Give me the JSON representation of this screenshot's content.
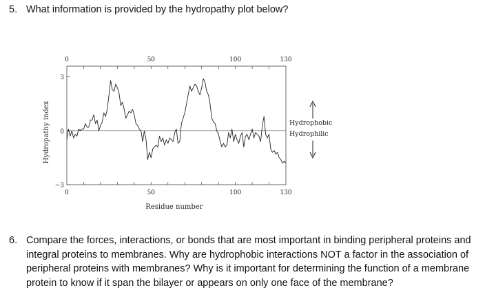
{
  "question5": {
    "number": "5.",
    "text": "What information is provided by the hydropathy plot below?"
  },
  "question6": {
    "number": "6.",
    "text": "Compare the forces, interactions, or bonds that are most important in binding peripheral proteins and integral proteins to membranes. Why are hydrophobic interactions NOT a factor in the association of peripheral proteins with membranes? Why is it important for determining the function of a membrane protein to know if it span the bilayer or appears on only one face of the membrane?"
  },
  "chart_data": {
    "type": "line",
    "xlabel": "Residue number",
    "ylabel": "Hydropathy index",
    "xlim": [
      0,
      130
    ],
    "ylim": [
      -3,
      3.6
    ],
    "top_ticks": [
      "0",
      "50",
      "100",
      "130"
    ],
    "bottom_ticks": [
      "0",
      "50",
      "100",
      "130"
    ],
    "y_ticks": [
      "3",
      "0",
      "−3"
    ],
    "y_tick_values": [
      3,
      0,
      -3
    ],
    "x_tick_values": [
      0,
      50,
      100,
      130
    ],
    "annotation_up": "Hydrophobic",
    "annotation_down": "Hydrophilic",
    "reference_line": 0,
    "grid": false,
    "x": [
      0,
      1,
      2,
      3,
      4,
      5,
      6,
      7,
      8,
      9,
      10,
      11,
      12,
      13,
      14,
      15,
      16,
      17,
      18,
      19,
      20,
      21,
      22,
      23,
      24,
      25,
      26,
      27,
      28,
      29,
      30,
      31,
      32,
      33,
      34,
      35,
      36,
      37,
      38,
      39,
      40,
      41,
      42,
      43,
      44,
      45,
      46,
      47,
      48,
      49,
      50,
      51,
      52,
      53,
      54,
      55,
      56,
      57,
      58,
      59,
      60,
      61,
      62,
      63,
      64,
      65,
      66,
      67,
      68,
      69,
      70,
      71,
      72,
      73,
      74,
      75,
      76,
      77,
      78,
      79,
      80,
      81,
      82,
      83,
      84,
      85,
      86,
      87,
      88,
      89,
      90,
      91,
      92,
      93,
      94,
      95,
      96,
      97,
      98,
      99,
      100,
      101,
      102,
      103,
      104,
      105,
      106,
      107,
      108,
      109,
      110,
      111,
      112,
      113,
      114,
      115,
      116,
      117,
      118,
      119,
      120,
      121,
      122,
      123,
      124,
      125,
      126,
      127,
      128,
      129,
      130
    ],
    "y": [
      -0.5,
      0.1,
      -0.3,
      0.0,
      -0.4,
      -0.2,
      -0.3,
      0.1,
      0.0,
      0.1,
      0.1,
      0.4,
      0.2,
      0.2,
      0.6,
      0.6,
      0.9,
      0.4,
      0.6,
      0.0,
      0.3,
      0.5,
      1.0,
      0.8,
      1.2,
      2.0,
      2.8,
      2.3,
      2.2,
      2.6,
      2.4,
      2.1,
      1.4,
      1.6,
      1.2,
      0.7,
      0.9,
      1.1,
      1.0,
      1.2,
      0.9,
      0.4,
      0.3,
      0.1,
      0.0,
      -0.6,
      0.0,
      -0.5,
      -1.6,
      -1.2,
      -1.5,
      -1.0,
      -0.9,
      -0.8,
      -0.9,
      -0.3,
      -0.6,
      -0.4,
      -0.8,
      -0.5,
      -0.7,
      -0.4,
      -0.5,
      -0.6,
      -0.1,
      0.1,
      -0.7,
      -0.6,
      0.4,
      0.7,
      1.0,
      1.5,
      2.0,
      2.5,
      2.2,
      2.4,
      2.6,
      2.5,
      2.2,
      2.0,
      2.4,
      2.9,
      2.7,
      2.2,
      2.0,
      1.5,
      0.7,
      0.5,
      0.4,
      0.0,
      -0.2,
      -0.6,
      -0.9,
      -0.7,
      -0.9,
      -0.8,
      -0.1,
      -0.4,
      0.1,
      -0.6,
      -0.2,
      -0.5,
      -0.7,
      -0.3,
      -0.1,
      -0.9,
      -0.3,
      -0.2,
      -0.5,
      -0.2,
      0.1,
      -0.4,
      -0.1,
      -0.2,
      -0.3,
      -0.6,
      0.3,
      0.8,
      -0.2,
      -0.4,
      -0.2,
      -1.0,
      -1.2,
      -1.1,
      -1.3,
      -1.2,
      -1.5,
      -1.6,
      -1.8,
      -1.7,
      -1.8
    ]
  }
}
